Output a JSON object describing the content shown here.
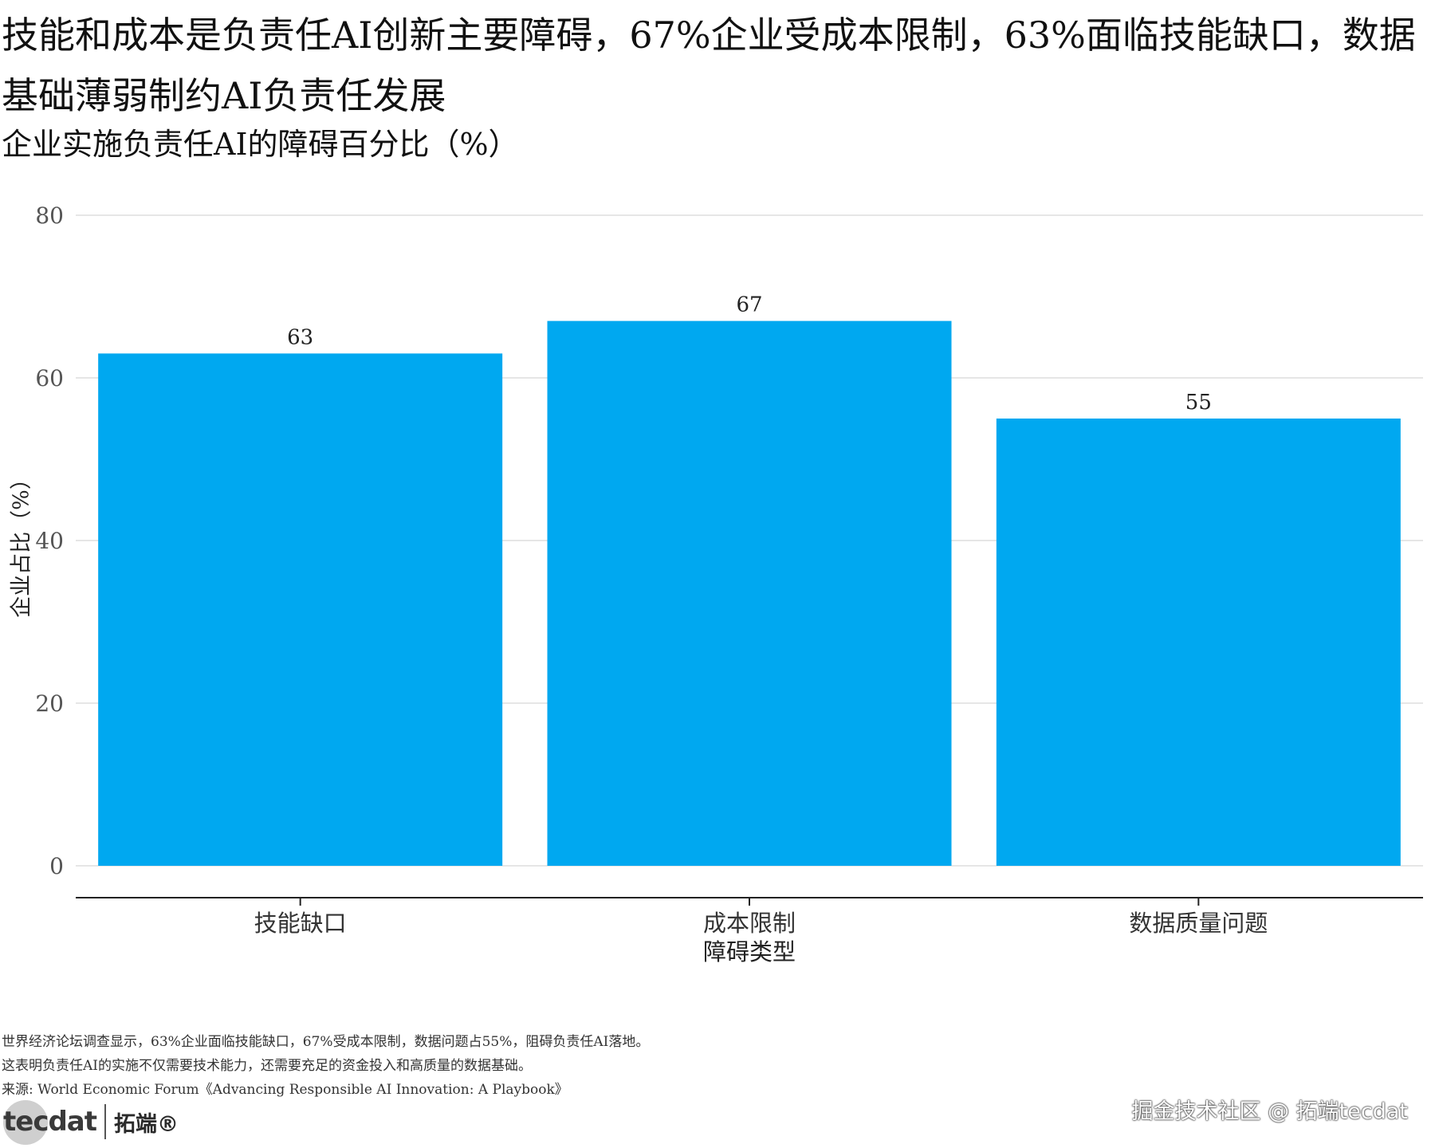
{
  "title": "技能和成本是负责任AI创新主要障碍，67%企业受成本限制，63%面临技能缺口，数据基础薄弱制约AI负责任发展",
  "subtitle": "企业实施负责任AI的障碍百分比（%）",
  "chart_data": {
    "type": "bar",
    "categories": [
      "技能缺口",
      "成本限制",
      "数据质量问题"
    ],
    "values": [
      63,
      67,
      55
    ],
    "data_labels": [
      "63",
      "67",
      "55"
    ],
    "xlabel": "障碍类型",
    "ylabel": "企业占比（%）",
    "ylim": [
      0,
      80
    ],
    "yticks": [
      0,
      20,
      40,
      60,
      80
    ],
    "ytick_labels": [
      "0",
      "20",
      "40",
      "60",
      "80"
    ],
    "bar_color": "#00a8f0",
    "grid": true,
    "legend": "none"
  },
  "notes": [
    "世界经济论坛调查显示，63%企业面临技能缺口，67%受成本限制，数据问题占55%，阻碍负责任AI落地。",
    "这表明负责任AI的实施不仅需要技术能力，还需要充足的资金投入和高质量的数据基础。",
    "来源: World Economic Forum《Advancing Responsible AI Innovation: A Playbook》"
  ],
  "logo": {
    "text": "tecdat",
    "cn": "拓端®"
  },
  "watermark": "掘金技术社区 @ 拓端tecdat"
}
